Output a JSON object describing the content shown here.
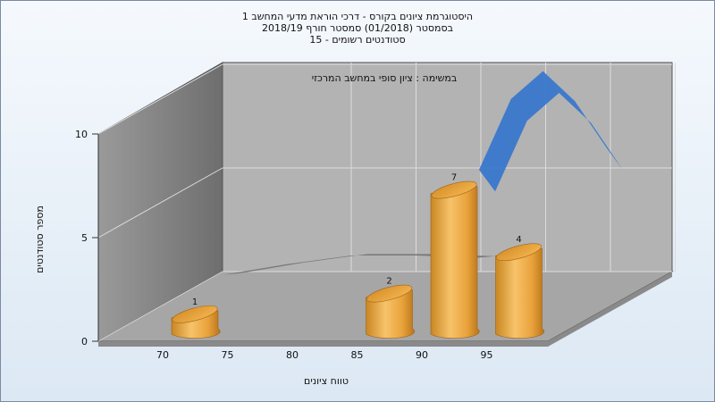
{
  "chart_data": {
    "type": "bar",
    "title_lines": [
      "היסטוגרמת ציונים בקורס - דרכי הוראת מדעי המחשב 1",
      "בסמסטר  (01/2018)  סמסטר חורף 2018/19",
      "סטודנטים רשומים - 15"
    ],
    "subtitle": "במשימה : ציון סופי במחשב המרכזי",
    "xlabel": "טווח ציונים",
    "ylabel": "מספר סטודנטים",
    "x_ticks": [
      "70",
      "75",
      "80",
      "85",
      "90",
      "95"
    ],
    "y_ticks": [
      "0",
      "5",
      "10"
    ],
    "ylim": [
      0,
      10
    ],
    "bars": [
      {
        "x": 70,
        "value": 1
      },
      {
        "x": 85,
        "value": 2
      },
      {
        "x": 90,
        "value": 7
      },
      {
        "x": 95,
        "value": 4
      }
    ],
    "curves": [
      {
        "color": "#777777",
        "points": [
          [
            70,
            0.1
          ],
          [
            75,
            0.6
          ],
          [
            80,
            1.0
          ],
          [
            85,
            1.0
          ],
          [
            90,
            0.9
          ]
        ]
      },
      {
        "color": "#3a78cc",
        "points": [
          [
            90,
            5
          ],
          [
            92.5,
            8.3
          ],
          [
            95,
            9.6
          ],
          [
            97.5,
            8.2
          ],
          [
            100,
            6
          ]
        ]
      }
    ],
    "bar_color": "#e9a23b",
    "grid": true
  }
}
